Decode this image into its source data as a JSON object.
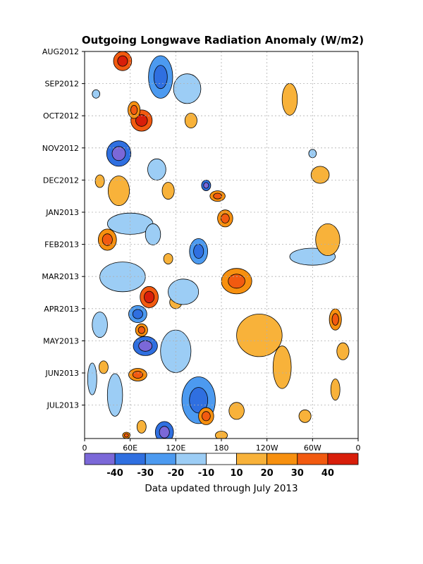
{
  "chart_data": {
    "type": "heatmap",
    "title": "Outgoing Longwave Radiation Anomaly (W/m2)",
    "xlabel": "",
    "ylabel": "",
    "x_tick_labels": [
      "0",
      "60E",
      "120E",
      "180",
      "120W",
      "60W",
      "0"
    ],
    "x_range_deg_east": [
      0,
      360
    ],
    "y_tick_labels": [
      "AUG2012",
      "SEP2012",
      "OCT2012",
      "NOV2012",
      "DEC2012",
      "JAN2013",
      "FEB2013",
      "MAR2013",
      "APR2013",
      "MAY2013",
      "JUN2013",
      "JUL2013"
    ],
    "y_range": [
      "2012-08-01",
      "2013-07-31"
    ],
    "grid": true,
    "colorbar": {
      "tick_labels": [
        "-40",
        "-30",
        "-20",
        "-10",
        "10",
        "20",
        "30",
        "40"
      ],
      "colors": [
        "#7b68d8",
        "#2f6fe0",
        "#4c9af0",
        "#9ccdf5",
        "#ffffff",
        "#f8b23a",
        "#f7900f",
        "#f25a10",
        "#d81e0a"
      ],
      "legend_position": "bottom"
    },
    "anomaly_regions": [
      {
        "lon": 50,
        "date": "2012-08-10",
        "rlon": 12,
        "rdays": 9,
        "value": 35
      },
      {
        "lon": 100,
        "date": "2012-08-25",
        "rlon": 16,
        "rdays": 20,
        "value": -20
      },
      {
        "lon": 75,
        "date": "2012-10-05",
        "rlon": 14,
        "rdays": 10,
        "value": 30
      },
      {
        "lon": 65,
        "date": "2012-09-25",
        "rlon": 8,
        "rdays": 8,
        "value": 20
      },
      {
        "lon": 135,
        "date": "2012-09-05",
        "rlon": 18,
        "rdays": 14,
        "value": -15
      },
      {
        "lon": 140,
        "date": "2012-10-05",
        "rlon": 8,
        "rdays": 7,
        "value": 15
      },
      {
        "lon": 15,
        "date": "2012-09-10",
        "rlon": 5,
        "rdays": 4,
        "value": -15
      },
      {
        "lon": 270,
        "date": "2012-09-15",
        "rlon": 10,
        "rdays": 15,
        "value": 15
      },
      {
        "lon": 45,
        "date": "2012-11-05",
        "rlon": 16,
        "rdays": 12,
        "value": -30
      },
      {
        "lon": 95,
        "date": "2012-11-20",
        "rlon": 12,
        "rdays": 10,
        "value": -15
      },
      {
        "lon": 20,
        "date": "2012-12-01",
        "rlon": 6,
        "rdays": 6,
        "value": 15
      },
      {
        "lon": 45,
        "date": "2012-12-10",
        "rlon": 14,
        "rdays": 14,
        "value": 18
      },
      {
        "lon": 110,
        "date": "2012-12-10",
        "rlon": 8,
        "rdays": 8,
        "value": 15
      },
      {
        "lon": 160,
        "date": "2012-12-05",
        "rlon": 6,
        "rdays": 5,
        "value": -35
      },
      {
        "lon": 175,
        "date": "2012-12-15",
        "rlon": 10,
        "rdays": 5,
        "value": 25
      },
      {
        "lon": 310,
        "date": "2012-11-25",
        "rlon": 12,
        "rdays": 8,
        "value": 15
      },
      {
        "lon": 300,
        "date": "2012-11-05",
        "rlon": 5,
        "rdays": 4,
        "value": -12
      },
      {
        "lon": 60,
        "date": "2013-01-10",
        "rlon": 30,
        "rdays": 10,
        "value": -18
      },
      {
        "lon": 185,
        "date": "2013-01-05",
        "rlon": 10,
        "rdays": 8,
        "value": 25
      },
      {
        "lon": 30,
        "date": "2013-01-25",
        "rlon": 12,
        "rdays": 10,
        "value": 25
      },
      {
        "lon": 90,
        "date": "2013-01-20",
        "rlon": 10,
        "rdays": 10,
        "value": -12
      },
      {
        "lon": 150,
        "date": "2013-02-05",
        "rlon": 12,
        "rdays": 12,
        "value": -20
      },
      {
        "lon": 110,
        "date": "2013-02-12",
        "rlon": 6,
        "rdays": 5,
        "value": 15
      },
      {
        "lon": 300,
        "date": "2013-02-10",
        "rlon": 30,
        "rdays": 8,
        "value": -12
      },
      {
        "lon": 320,
        "date": "2013-01-25",
        "rlon": 16,
        "rdays": 15,
        "value": 18
      },
      {
        "lon": 200,
        "date": "2013-03-05",
        "rlon": 20,
        "rdays": 12,
        "value": 25
      },
      {
        "lon": 50,
        "date": "2013-03-01",
        "rlon": 30,
        "rdays": 14,
        "value": -15
      },
      {
        "lon": 85,
        "date": "2013-03-20",
        "rlon": 12,
        "rdays": 10,
        "value": 35
      },
      {
        "lon": 120,
        "date": "2013-03-25",
        "rlon": 8,
        "rdays": 6,
        "value": 18
      },
      {
        "lon": 130,
        "date": "2013-03-15",
        "rlon": 20,
        "rdays": 12,
        "value": -15
      },
      {
        "lon": 70,
        "date": "2013-04-05",
        "rlon": 12,
        "rdays": 8,
        "value": -25
      },
      {
        "lon": 75,
        "date": "2013-04-20",
        "rlon": 8,
        "rdays": 6,
        "value": 25
      },
      {
        "lon": 20,
        "date": "2013-04-15",
        "rlon": 10,
        "rdays": 12,
        "value": -15
      },
      {
        "lon": 230,
        "date": "2013-04-25",
        "rlon": 30,
        "rdays": 20,
        "value": 15
      },
      {
        "lon": 330,
        "date": "2013-04-10",
        "rlon": 8,
        "rdays": 10,
        "value": 25
      },
      {
        "lon": 340,
        "date": "2013-05-10",
        "rlon": 8,
        "rdays": 8,
        "value": 15
      },
      {
        "lon": 80,
        "date": "2013-05-05",
        "rlon": 16,
        "rdays": 9,
        "value": -35
      },
      {
        "lon": 120,
        "date": "2013-05-10",
        "rlon": 20,
        "rdays": 20,
        "value": -15
      },
      {
        "lon": 70,
        "date": "2013-06-01",
        "rlon": 12,
        "rdays": 6,
        "value": 25
      },
      {
        "lon": 260,
        "date": "2013-05-25",
        "rlon": 12,
        "rdays": 20,
        "value": 15
      },
      {
        "lon": 330,
        "date": "2013-06-15",
        "rlon": 6,
        "rdays": 10,
        "value": 15
      },
      {
        "lon": 25,
        "date": "2013-05-25",
        "rlon": 6,
        "rdays": 6,
        "value": 15
      },
      {
        "lon": 40,
        "date": "2013-06-20",
        "rlon": 10,
        "rdays": 20,
        "value": -15
      },
      {
        "lon": 150,
        "date": "2013-06-25",
        "rlon": 22,
        "rdays": 22,
        "value": -20
      },
      {
        "lon": 160,
        "date": "2013-07-10",
        "rlon": 10,
        "rdays": 8,
        "value": 25
      },
      {
        "lon": 200,
        "date": "2013-07-05",
        "rlon": 10,
        "rdays": 8,
        "value": 15
      },
      {
        "lon": 105,
        "date": "2013-07-25",
        "rlon": 12,
        "rdays": 10,
        "value": -30
      },
      {
        "lon": 75,
        "date": "2013-07-20",
        "rlon": 6,
        "rdays": 6,
        "value": 15
      },
      {
        "lon": 55,
        "date": "2013-07-28",
        "rlon": 5,
        "rdays": 3,
        "value": 25
      },
      {
        "lon": 180,
        "date": "2013-07-28",
        "rlon": 8,
        "rdays": 4,
        "value": 15
      },
      {
        "lon": 10,
        "date": "2013-06-05",
        "rlon": 6,
        "rdays": 15,
        "value": -12
      },
      {
        "lon": 290,
        "date": "2013-07-10",
        "rlon": 8,
        "rdays": 6,
        "value": 15
      }
    ]
  },
  "footer_note": "Data updated through July 2013"
}
